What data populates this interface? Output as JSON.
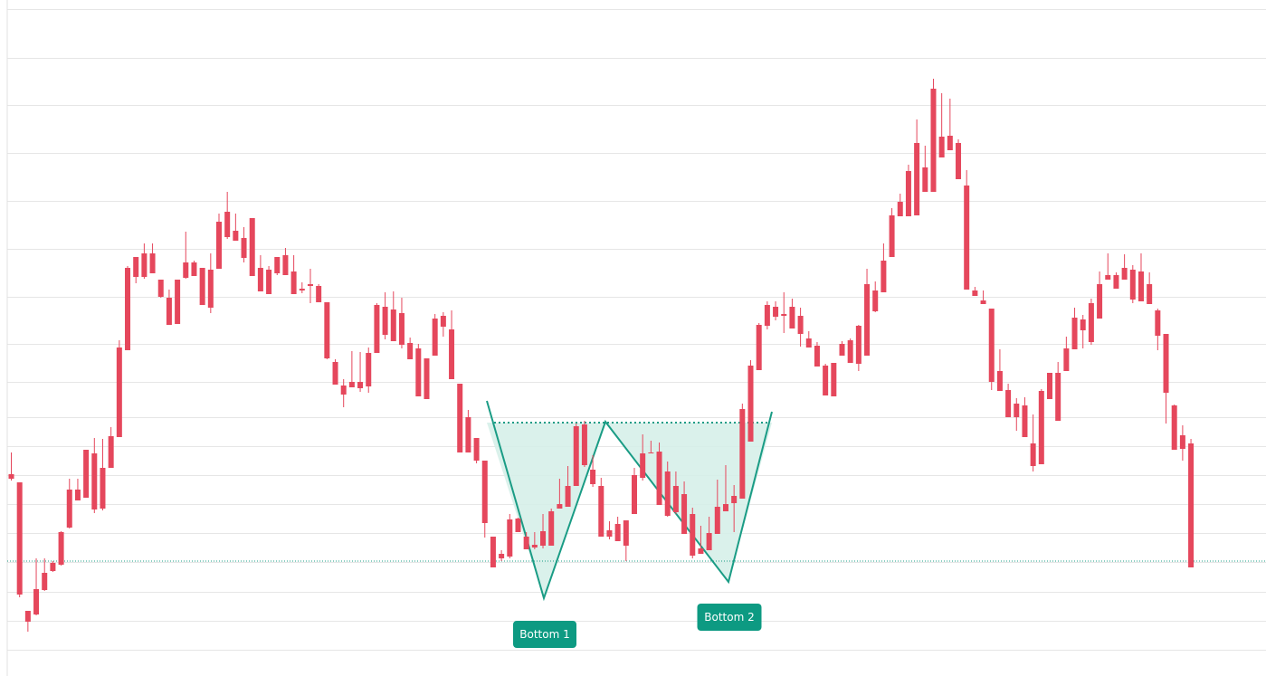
{
  "chart_data": {
    "type": "candlestick",
    "title": "",
    "xlabel": "",
    "ylabel": "",
    "grid": true,
    "colors": {
      "up": "#4cb387",
      "down": "#e5475c",
      "pattern": "#1a9c85",
      "pattern_fill": "#d3eee8",
      "label_bg": "#0d9a82",
      "grid": "#e6e6e6",
      "support_line": "#1a9c85"
    },
    "ylim": [
      0,
      747
    ],
    "levels": {
      "neckline": 467,
      "support": 620
    },
    "candles": [
      [
        524,
        529,
        500,
        531
      ],
      [
        533,
        657,
        533,
        660
      ],
      [
        675,
        687,
        675,
        698
      ],
      [
        651,
        679,
        617,
        680
      ],
      [
        633,
        652,
        617,
        653
      ],
      [
        622,
        631,
        620,
        632
      ],
      [
        588,
        624,
        587,
        625
      ],
      [
        541,
        583,
        529,
        584
      ],
      [
        541,
        553,
        529,
        553
      ],
      [
        497,
        550,
        497,
        550
      ],
      [
        501,
        563,
        484,
        567
      ],
      [
        517,
        562,
        485,
        564
      ],
      [
        482,
        517,
        472,
        517
      ],
      [
        384,
        483,
        376,
        483
      ],
      [
        296,
        387,
        294,
        387
      ],
      [
        284,
        306,
        284,
        313
      ],
      [
        280,
        306,
        269,
        308
      ],
      [
        280,
        302,
        269,
        302
      ],
      [
        309,
        328,
        309,
        329
      ],
      [
        329,
        359,
        320,
        359
      ],
      [
        309,
        358,
        309,
        358
      ],
      [
        290,
        307,
        256,
        308
      ],
      [
        290,
        305,
        288,
        305
      ],
      [
        296,
        337,
        296,
        337
      ],
      [
        298,
        340,
        280,
        346
      ],
      [
        245,
        297,
        236,
        297
      ],
      [
        234,
        262,
        212,
        264
      ],
      [
        255,
        266,
        236,
        266
      ],
      [
        263,
        285,
        251,
        290
      ],
      [
        241,
        305,
        241,
        305
      ],
      [
        296,
        322,
        282,
        322
      ],
      [
        298,
        325,
        294,
        325
      ],
      [
        284,
        302,
        284,
        304
      ],
      [
        282,
        304,
        274,
        304
      ],
      [
        300,
        325,
        282,
        325
      ],
      [
        319,
        321,
        312,
        324
      ],
      [
        314,
        316,
        297,
        335
      ],
      [
        316,
        334,
        314,
        334
      ],
      [
        334,
        396,
        334,
        397
      ],
      [
        400,
        425,
        397,
        425
      ],
      [
        426,
        436,
        419,
        450
      ],
      [
        422,
        428,
        388,
        428
      ],
      [
        422,
        429,
        389,
        433
      ],
      [
        390,
        427,
        384,
        434
      ],
      [
        337,
        390,
        335,
        390
      ],
      [
        339,
        370,
        323,
        375
      ],
      [
        342,
        377,
        322,
        377
      ],
      [
        346,
        381,
        329,
        385
      ],
      [
        379,
        397,
        373,
        397
      ],
      [
        385,
        438,
        380,
        438
      ],
      [
        396,
        441,
        396,
        441
      ],
      [
        352,
        393,
        347,
        393
      ],
      [
        349,
        361,
        345,
        372
      ],
      [
        364,
        419,
        343,
        419
      ],
      [
        424,
        500,
        424,
        500
      ],
      [
        461,
        500,
        453,
        500
      ],
      [
        484,
        509,
        484,
        512
      ],
      [
        509,
        578,
        509,
        594
      ],
      [
        593,
        627,
        593,
        627
      ],
      [
        612,
        617,
        608,
        620
      ],
      [
        574,
        615,
        568,
        617
      ],
      [
        573,
        588,
        572,
        588
      ],
      [
        593,
        607,
        588,
        607
      ],
      [
        602,
        605,
        588,
        607
      ],
      [
        587,
        603,
        568,
        606
      ],
      [
        565,
        603,
        562,
        603
      ],
      [
        557,
        562,
        529,
        562
      ],
      [
        537,
        560,
        515,
        560
      ],
      [
        471,
        537,
        468,
        537
      ],
      [
        469,
        514,
        465,
        516
      ],
      [
        519,
        535,
        503,
        538
      ],
      [
        537,
        593,
        528,
        593
      ],
      [
        586,
        593,
        576,
        596
      ],
      [
        579,
        598,
        571,
        598
      ],
      [
        575,
        603,
        575,
        620
      ],
      [
        525,
        568,
        517,
        568
      ],
      [
        501,
        528,
        480,
        531
      ],
      [
        500,
        501,
        487,
        501
      ],
      [
        499,
        558,
        489,
        558
      ],
      [
        521,
        570,
        510,
        571
      ],
      [
        537,
        566,
        521,
        568
      ],
      [
        546,
        590,
        532,
        590
      ],
      [
        568,
        614,
        561,
        617
      ],
      [
        606,
        612,
        581,
        612
      ],
      [
        589,
        608,
        571,
        608
      ],
      [
        560,
        590,
        530,
        590
      ],
      [
        557,
        565,
        514,
        565
      ],
      [
        548,
        556,
        536,
        588
      ],
      [
        452,
        551,
        446,
        551
      ],
      [
        404,
        488,
        398,
        488
      ],
      [
        359,
        409,
        357,
        409
      ],
      [
        337,
        360,
        333,
        364
      ],
      [
        339,
        350,
        333,
        354
      ],
      [
        347,
        349,
        323,
        368
      ],
      [
        339,
        363,
        330,
        363
      ],
      [
        349,
        369,
        340,
        383
      ],
      [
        374,
        384,
        366,
        384
      ],
      [
        382,
        405,
        378,
        405
      ],
      [
        404,
        437,
        402,
        437
      ],
      [
        401,
        438,
        401,
        438
      ],
      [
        380,
        393,
        377,
        393
      ],
      [
        376,
        401,
        374,
        401
      ],
      [
        360,
        402,
        359,
        410
      ],
      [
        314,
        393,
        297,
        393
      ],
      [
        321,
        344,
        311,
        345
      ],
      [
        288,
        323,
        269,
        323
      ],
      [
        238,
        284,
        230,
        284
      ],
      [
        223,
        239,
        214,
        239
      ],
      [
        189,
        239,
        182,
        239
      ],
      [
        158,
        238,
        132,
        238
      ],
      [
        185,
        212,
        161,
        212
      ],
      [
        98,
        212,
        87,
        212
      ],
      [
        151,
        174,
        103,
        174
      ],
      [
        150,
        166,
        109,
        166
      ],
      [
        158,
        198,
        154,
        198
      ],
      [
        205,
        320,
        188,
        320
      ],
      [
        321,
        327,
        317,
        327
      ],
      [
        332,
        336,
        321,
        336
      ],
      [
        341,
        422,
        341,
        431
      ],
      [
        410,
        432,
        386,
        432
      ],
      [
        431,
        461,
        424,
        461
      ],
      [
        446,
        461,
        440,
        476
      ],
      [
        448,
        483,
        439,
        483
      ],
      [
        490,
        515,
        458,
        521
      ],
      [
        432,
        513,
        430,
        513
      ],
      [
        412,
        441,
        412,
        441
      ],
      [
        412,
        465,
        400,
        465
      ],
      [
        385,
        410,
        372,
        410
      ],
      [
        351,
        386,
        340,
        386
      ],
      [
        353,
        365,
        348,
        385
      ],
      [
        335,
        378,
        330,
        381
      ],
      [
        314,
        352,
        300,
        352
      ],
      [
        304,
        309,
        280,
        309
      ],
      [
        304,
        319,
        301,
        319
      ],
      [
        296,
        309,
        281,
        309
      ],
      [
        298,
        331,
        293,
        335
      ],
      [
        300,
        333,
        280,
        333
      ],
      [
        314,
        336,
        301,
        336
      ],
      [
        343,
        371,
        341,
        387
      ],
      [
        369,
        434,
        370,
        468
      ],
      [
        448,
        497,
        447,
        497
      ],
      [
        481,
        496,
        470,
        509
      ],
      [
        490,
        627,
        485,
        627
      ]
    ],
    "pattern": {
      "type": "double-bottom",
      "line": [
        [
          538,
          443
        ],
        [
          601,
          661
        ],
        [
          669,
          466
        ],
        [
          805,
          643
        ],
        [
          853,
          455
        ]
      ],
      "neckline_x": [
        546,
        850
      ],
      "labels": [
        {
          "text": "Bottom 1"
        },
        {
          "text": "Bottom 2"
        }
      ]
    }
  }
}
